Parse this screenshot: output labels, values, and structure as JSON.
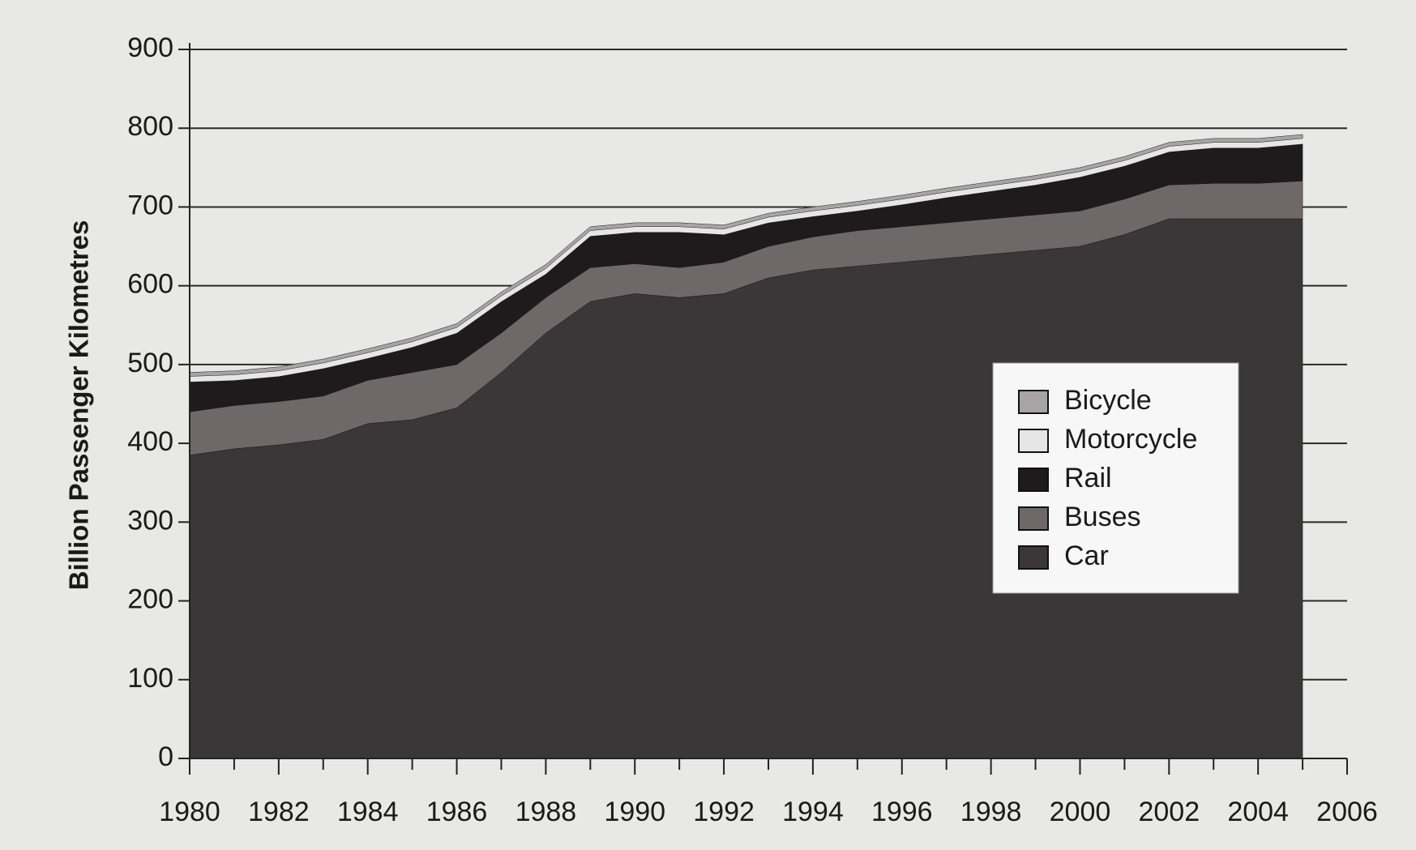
{
  "chart_data": {
    "type": "stacked_area",
    "y_label": "Billion Passenger Kilometres",
    "x": [
      1980,
      1981,
      1982,
      1983,
      1984,
      1985,
      1986,
      1987,
      1988,
      1989,
      1990,
      1991,
      1992,
      1993,
      1994,
      1995,
      1996,
      1997,
      1998,
      1999,
      2000,
      2001,
      2002,
      2003,
      2004,
      2005
    ],
    "series": [
      {
        "name": "Car",
        "color": "#3b3637",
        "values": [
          385,
          393,
          398,
          405,
          425,
          430,
          445,
          490,
          540,
          580,
          590,
          585,
          590,
          610,
          620,
          625,
          630,
          635,
          640,
          645,
          650,
          665,
          685,
          685,
          685,
          685
        ]
      },
      {
        "name": "Buses",
        "color": "#6e6869",
        "values": [
          55,
          55,
          55,
          55,
          55,
          60,
          55,
          50,
          45,
          43,
          38,
          38,
          40,
          40,
          42,
          45,
          45,
          45,
          45,
          45,
          45,
          45,
          43,
          45,
          45,
          48
        ]
      },
      {
        "name": "Rail",
        "color": "#1f1b1c",
        "values": [
          38,
          32,
          32,
          35,
          28,
          32,
          40,
          40,
          30,
          40,
          40,
          45,
          35,
          30,
          26,
          25,
          28,
          32,
          35,
          38,
          43,
          42,
          42,
          45,
          45,
          47
        ]
      },
      {
        "name": "Motorcycle",
        "color": "#e6e6e6",
        "values": [
          7,
          7,
          7,
          7,
          7,
          7,
          7,
          7,
          7,
          7,
          7,
          7,
          7,
          7,
          7,
          7,
          7,
          7,
          7,
          7,
          7,
          7,
          7,
          7,
          7,
          7
        ]
      },
      {
        "name": "Bicycle",
        "color": "#a8a4a5",
        "values": [
          5,
          5,
          5,
          5,
          5,
          5,
          5,
          5,
          5,
          5,
          5,
          5,
          5,
          5,
          5,
          5,
          5,
          5,
          5,
          5,
          5,
          5,
          5,
          5,
          5,
          5
        ]
      }
    ],
    "xlim": [
      1980,
      2006
    ],
    "xticks": [
      1980,
      1982,
      1984,
      1986,
      1988,
      1990,
      1992,
      1994,
      1996,
      1998,
      2000,
      2002,
      2004,
      2006
    ],
    "xminorticks": [
      1981,
      1983,
      1985,
      1987,
      1989,
      1991,
      1993,
      1995,
      1997,
      1999,
      2001,
      2003,
      2005
    ],
    "ylim": [
      0,
      900
    ],
    "yticks": [
      0,
      100,
      200,
      300,
      400,
      500,
      600,
      700,
      800,
      900
    ],
    "grid": true,
    "legend": "right"
  }
}
